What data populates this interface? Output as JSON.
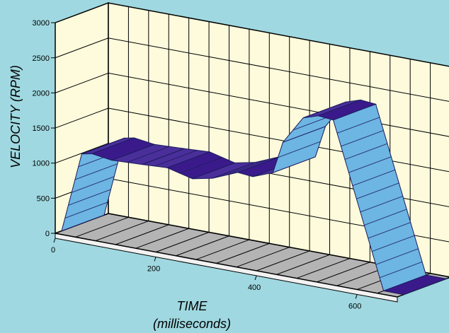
{
  "chart_data": {
    "type": "area",
    "title": "",
    "xlabel": "TIME",
    "xlabel_sub": "(milliseconds)",
    "ylabel": "VELOCITY  (RPM)",
    "xlim": [
      0,
      680
    ],
    "ylim": [
      0,
      3000
    ],
    "x_ticks": [
      0,
      200,
      400,
      600
    ],
    "x_tick_labels": [
      "0",
      "200",
      "400",
      "600"
    ],
    "y_ticks": [
      0,
      500,
      1000,
      1500,
      2000,
      2500,
      3000
    ],
    "y_tick_labels": [
      "0",
      "500",
      "1000",
      "1500",
      "2000",
      "2500",
      "3000"
    ],
    "grid": true,
    "three_d": true,
    "series": [
      {
        "x": [
          0,
          40,
          60,
          100,
          160,
          210,
          260,
          300,
          350,
          380,
          420,
          440,
          480,
          510,
          540,
          640,
          680
        ],
        "values": [
          0,
          1150,
          1180,
          1140,
          1160,
          1180,
          1090,
          1150,
          1300,
          1280,
          1390,
          1850,
          2250,
          2320,
          2300,
          0,
          0
        ]
      }
    ],
    "colors": {
      "background": "#9fd8e0",
      "wall": "#fdfbdc",
      "floor": "#b4b4b4",
      "ribbon": "#6db5e3",
      "ribbon_dark": "#3a1a8a"
    }
  }
}
